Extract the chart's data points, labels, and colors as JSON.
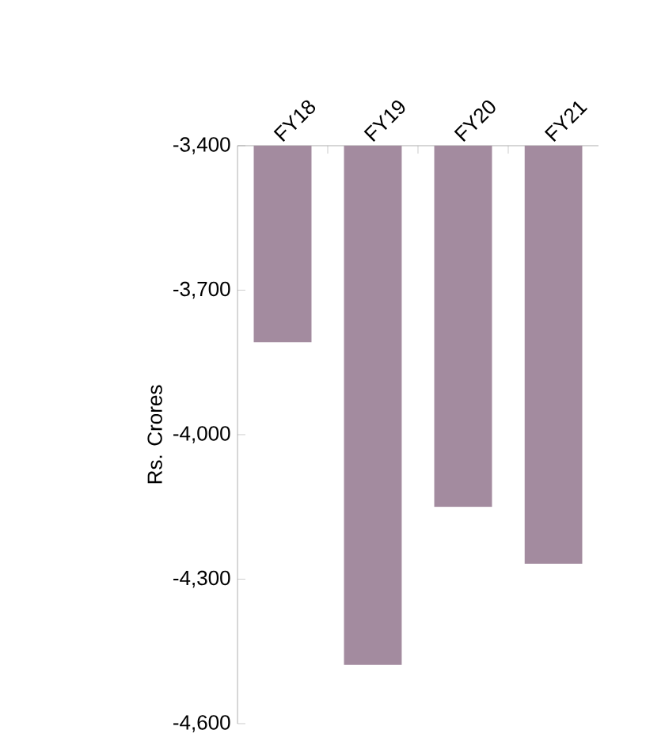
{
  "chart_data": {
    "type": "bar",
    "ylabel": "Rs. Crores",
    "categories": [
      "FY18",
      "FY19",
      "FY20",
      "FY21"
    ],
    "values": [
      -3808,
      -4478,
      -4150,
      -4268
    ],
    "color": "#a38b9f",
    "ylim": [
      -4600,
      -3400
    ],
    "yticks": [
      {
        "value": -4600,
        "label": "-4,600"
      },
      {
        "value": -4300,
        "label": "-4,300"
      },
      {
        "value": -4000,
        "label": "-4,000"
      },
      {
        "value": -3700,
        "label": "-3,700"
      },
      {
        "value": -3400,
        "label": "-3,400"
      }
    ],
    "grid": false
  }
}
